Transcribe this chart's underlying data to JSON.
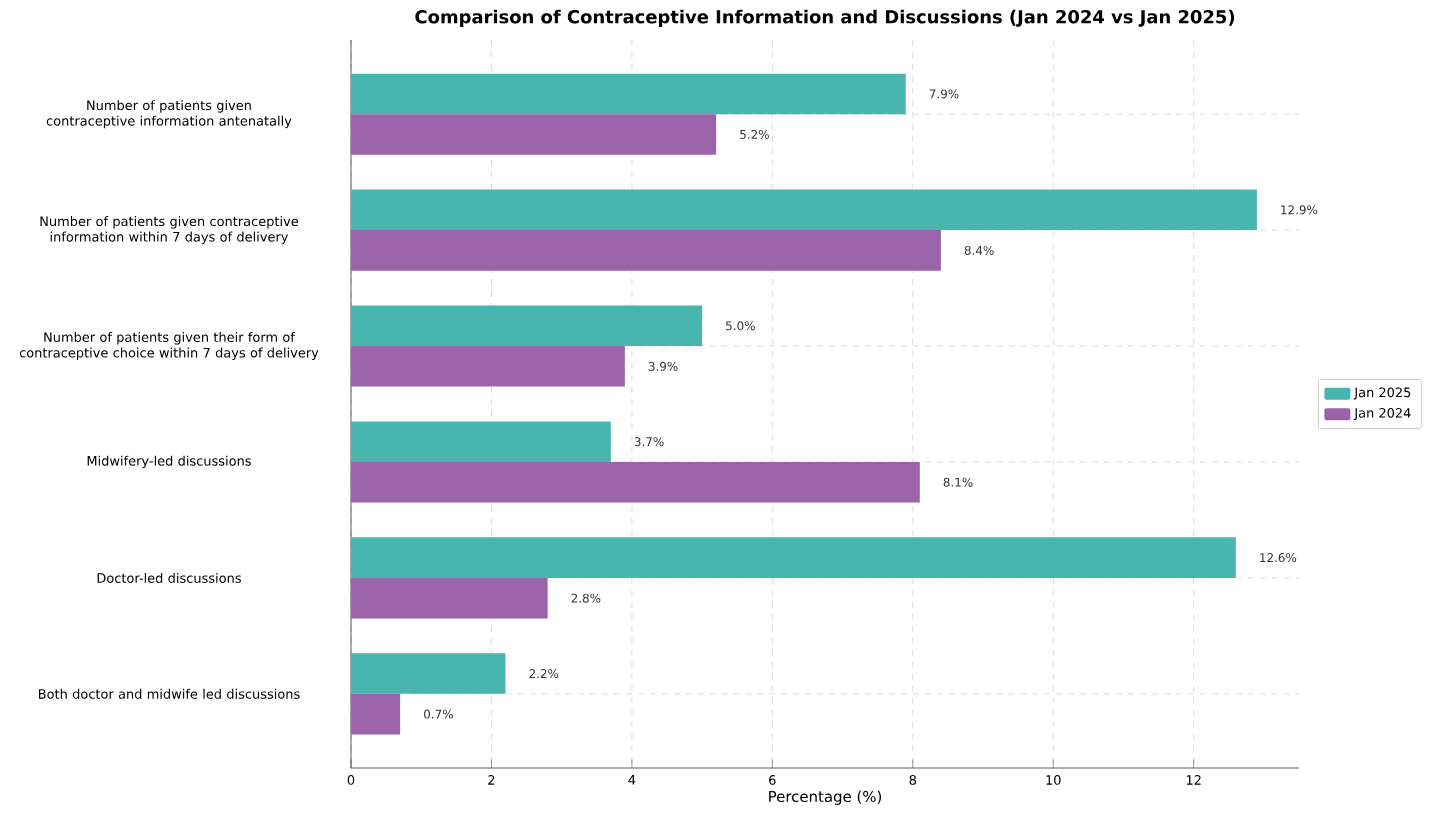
{
  "chart_data": {
    "type": "bar",
    "orientation": "horizontal",
    "title": "Comparison of Contraceptive Information and Discussions (Jan 2024 vs Jan 2025)",
    "xlabel": "Percentage (%)",
    "categories": [
      "Number of patients given contraceptive information antenatally",
      "Number of patients given contraceptive information within 7 days of delivery",
      "Number of patients given their form of contraceptive choice within 7 days of delivery",
      "Midwifery-led discussions",
      "Doctor-led discussions",
      "Both doctor and midwife led discussions"
    ],
    "series": [
      {
        "name": "Jan 2025",
        "color": "#48b5ae",
        "values": [
          7.9,
          12.9,
          5.0,
          3.7,
          12.6,
          2.2
        ],
        "value_labels": [
          "7.9%",
          "12.9%",
          "5.0%",
          "3.7%",
          "12.6%",
          "2.2%"
        ]
      },
      {
        "name": "Jan 2024",
        "color": "#9b64aa",
        "values": [
          5.2,
          8.4,
          3.9,
          8.1,
          2.8,
          0.7
        ],
        "value_labels": [
          "5.2%",
          "8.4%",
          "3.9%",
          "8.1%",
          "2.8%",
          "0.7%"
        ]
      }
    ],
    "xlim": [
      0,
      13.5
    ],
    "xticks": [
      0,
      2,
      4,
      6,
      8,
      10,
      12
    ],
    "grid": true,
    "legend": "right"
  }
}
